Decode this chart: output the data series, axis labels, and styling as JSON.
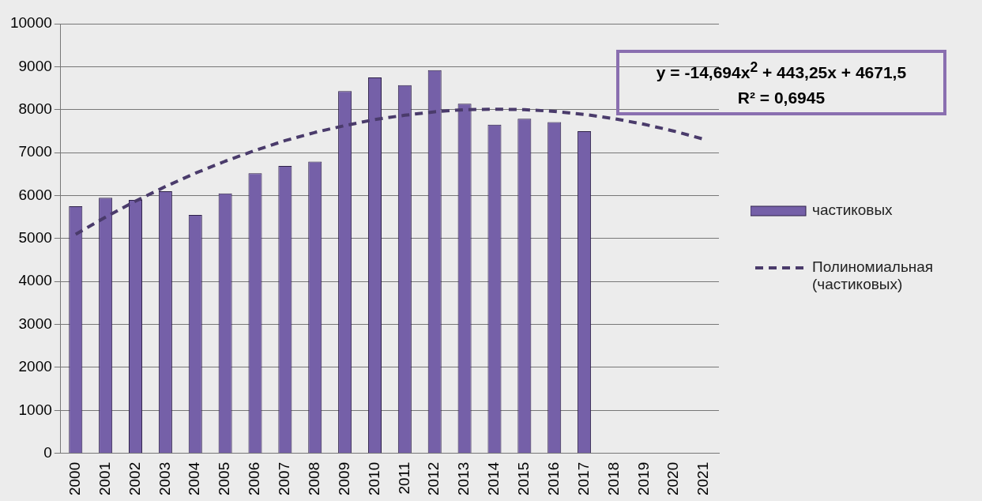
{
  "chart_data": {
    "type": "bar",
    "categories": [
      "2000",
      "2001",
      "2002",
      "2003",
      "2004",
      "2005",
      "2006",
      "2007",
      "2008",
      "2009",
      "2010",
      "2011",
      "2012",
      "2013",
      "2014",
      "2015",
      "2016",
      "2017",
      "2018",
      "2019",
      "2020",
      "2021"
    ],
    "series": [
      {
        "name": "частиковых",
        "color": "#7560a8",
        "values": [
          5750,
          5950,
          5900,
          6100,
          5550,
          6050,
          6520,
          6690,
          6790,
          8430,
          8750,
          8570,
          8920,
          8140,
          7650,
          7790,
          7710,
          7500,
          null,
          null,
          null,
          null
        ]
      },
      {
        "name": "Полиномиальная (частиковых)",
        "type": "line",
        "color": "#4a3b6b",
        "line_style": "dashed",
        "values": [
          5100,
          5500,
          5870,
          6210,
          6520,
          6800,
          7050,
          7280,
          7470,
          7630,
          7770,
          7870,
          7950,
          8000,
          8010,
          8000,
          7960,
          7890,
          7790,
          7660,
          7500,
          7310
        ]
      }
    ],
    "ylim": [
      0,
      10000
    ],
    "yticks": [
      0,
      1000,
      2000,
      3000,
      4000,
      5000,
      6000,
      7000,
      8000,
      9000,
      10000
    ],
    "grid": "y",
    "legend": "right",
    "annotations": [
      "y = -14,694x$^{2}$ + 443,25x + 4671,5",
      "R² = 0,6945"
    ]
  }
}
